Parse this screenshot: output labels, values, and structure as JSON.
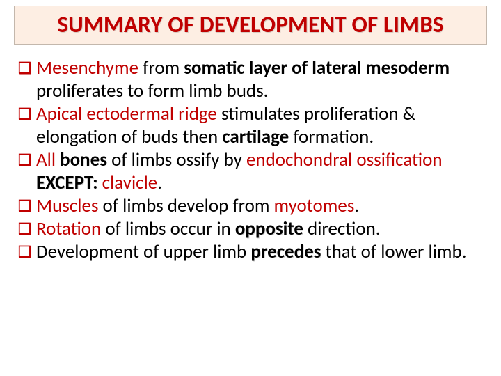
{
  "slide": {
    "title": "SUMMARY OF DEVELOPMENT OF LIMBS",
    "title_color": "#c00000",
    "title_bg": "#fdeee3",
    "title_border": "#c3b7ac",
    "bullet_glyph": "❑",
    "bullet_color": "#c00000",
    "background": "#ffffff",
    "font_family": "Calibri, Arial, sans-serif",
    "title_fontsize": 33,
    "body_fontsize": 27,
    "items": [
      {
        "runs": [
          {
            "text": "Mesenchyme",
            "color": "#c00000",
            "bold": false
          },
          {
            "text": " from ",
            "color": "#000000",
            "bold": false
          },
          {
            "text": "somatic layer of lateral mesoderm",
            "color": "#000000",
            "bold": true
          },
          {
            "text": " proliferates to form limb buds.",
            "color": "#000000",
            "bold": false
          }
        ]
      },
      {
        "runs": [
          {
            "text": "Apical ectodermal ridge",
            "color": "#c00000",
            "bold": false
          },
          {
            "text": " stimulates proliferation & elongation of buds then ",
            "color": "#000000",
            "bold": false
          },
          {
            "text": "cartilage",
            "color": "#000000",
            "bold": true
          },
          {
            "text": " formation.",
            "color": "#000000",
            "bold": false
          }
        ]
      },
      {
        "runs": [
          {
            "text": "All ",
            "color": "#c00000",
            "bold": false
          },
          {
            "text": "bones",
            "color": "#000000",
            "bold": true
          },
          {
            "text": " of limbs ossify by ",
            "color": "#000000",
            "bold": false
          },
          {
            "text": "endochondral ossification",
            "color": "#c00000",
            "bold": false
          },
          {
            "text": " ",
            "color": "#000000",
            "bold": false
          },
          {
            "text": "EXCEPT:",
            "color": "#000000",
            "bold": true,
            "shadow": true
          },
          {
            "text": " clavicle",
            "color": "#c00000",
            "bold": false
          },
          {
            "text": ".",
            "color": "#000000",
            "bold": false
          }
        ]
      },
      {
        "runs": [
          {
            "text": "Muscles",
            "color": "#c00000",
            "bold": false
          },
          {
            "text": " of limbs develop from ",
            "color": "#000000",
            "bold": false
          },
          {
            "text": "myotomes",
            "color": "#c00000",
            "bold": false
          },
          {
            "text": ".",
            "color": "#000000",
            "bold": false
          }
        ]
      },
      {
        "runs": [
          {
            "text": "Rotation",
            "color": "#c00000",
            "bold": false
          },
          {
            "text": " of limbs occur in ",
            "color": "#000000",
            "bold": false
          },
          {
            "text": "opposite",
            "color": "#000000",
            "bold": true,
            "shadow": true
          },
          {
            "text": " direction.",
            "color": "#000000",
            "bold": false
          }
        ]
      },
      {
        "runs": [
          {
            "text": "Development of upper limb ",
            "color": "#000000",
            "bold": false
          },
          {
            "text": "precedes",
            "color": "#000000",
            "bold": true,
            "shadow": true
          },
          {
            "text": " that of lower limb.",
            "color": "#000000",
            "bold": false
          }
        ]
      }
    ]
  }
}
